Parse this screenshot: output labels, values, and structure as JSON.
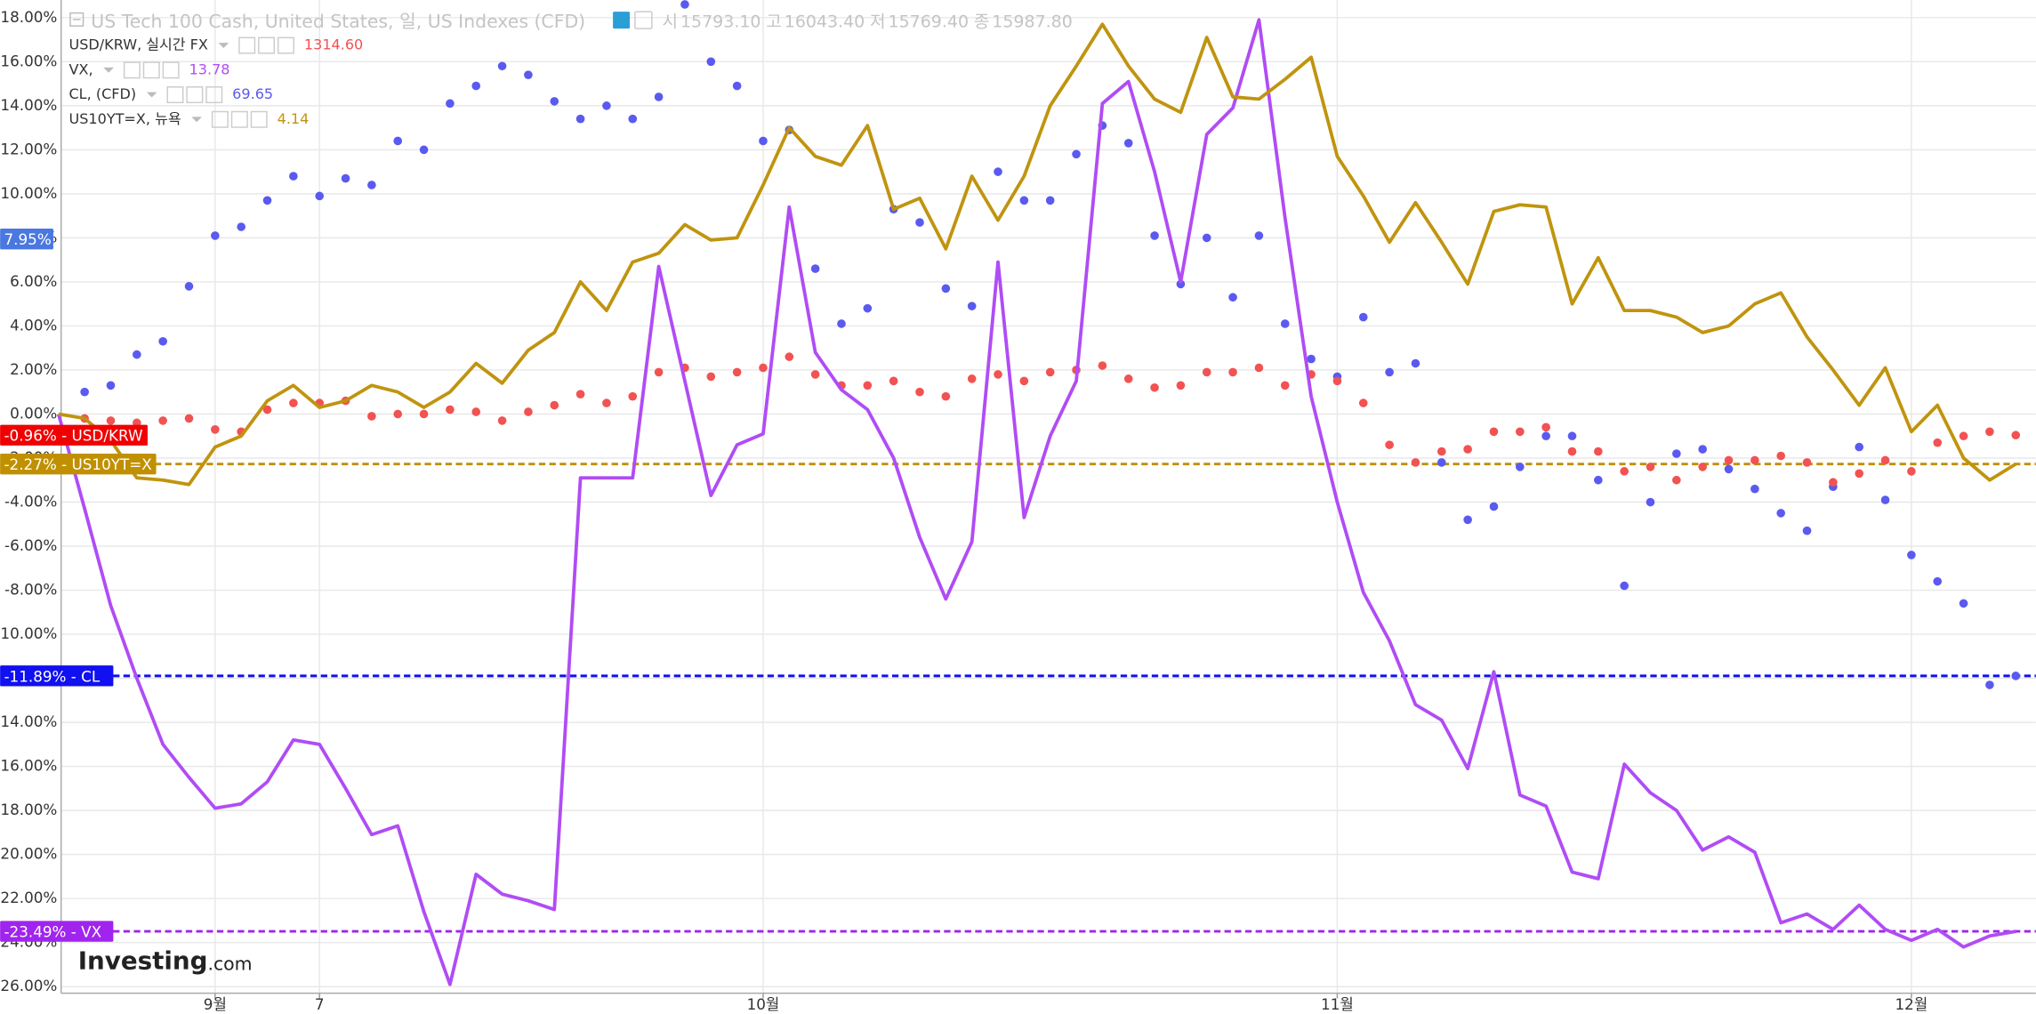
{
  "chart_data": {
    "type": "line",
    "title": "US Tech 100 Cash, United States, 일, US Indexes (CFD)",
    "ohlc": [
      {
        "name": "시",
        "price": {
          "value": 15793.1,
          "label": "15793.10"
        }
      },
      {
        "name": "고",
        "price": {
          "value": 16043.4,
          "label": "16043.40"
        }
      },
      {
        "name": "저",
        "price": {
          "value": 15769.4,
          "label": "15769.40"
        }
      },
      {
        "name": "종",
        "price": {
          "value": 15987.8,
          "label": "15987.80"
        }
      }
    ],
    "categories": [
      null,
      null,
      null,
      null,
      null,
      null,
      "9월",
      null,
      null,
      null,
      "7",
      null,
      null,
      null,
      null,
      null,
      null,
      null,
      null,
      null,
      null,
      null,
      null,
      null,
      null,
      null,
      null,
      "10월",
      null,
      null,
      null,
      null,
      null,
      null,
      null,
      null,
      null,
      null,
      null,
      null,
      null,
      null,
      null,
      null,
      null,
      null,
      null,
      null,
      null,
      "11월",
      null,
      null,
      null,
      null,
      null,
      null,
      null,
      null,
      null,
      null,
      null,
      null,
      null,
      null,
      null,
      null,
      null,
      null,
      null,
      null,
      null,
      "12월",
      null,
      null,
      null,
      null
    ],
    "ylim": [
      -26.3,
      18.8
    ],
    "yticks": [
      {
        "value": 18,
        "label": "18.00%"
      },
      {
        "value": 16,
        "label": "16.00%"
      },
      {
        "value": 14,
        "label": "14.00%"
      },
      {
        "value": 12,
        "label": "12.00%"
      },
      {
        "value": 10,
        "label": "10.00%"
      },
      {
        "value": 8,
        "label": "8.00%"
      },
      {
        "value": 6,
        "label": "6.00%"
      },
      {
        "value": 4,
        "label": "4.00%"
      },
      {
        "value": 2,
        "label": "2.00%"
      },
      {
        "value": 0,
        "label": "0.00%"
      },
      {
        "value": -2,
        "label": "-2.00%"
      },
      {
        "value": -4,
        "label": "-4.00%"
      },
      {
        "value": -6,
        "label": "-6.00%"
      },
      {
        "value": -8,
        "label": "-8.00%"
      },
      {
        "value": -10,
        "label": "-10.00%"
      },
      {
        "value": -12,
        "label": "-12.00%"
      },
      {
        "value": -14,
        "label": "-14.00%"
      },
      {
        "value": -16,
        "label": "-16.00%"
      },
      {
        "value": -18,
        "label": "-18.00%"
      },
      {
        "value": -20,
        "label": "-20.00%"
      },
      {
        "value": -22,
        "label": "-22.00%"
      },
      {
        "value": -24,
        "label": "-24.00%"
      },
      {
        "value": -26,
        "label": "-26.00%"
      }
    ],
    "grid": true,
    "series": [
      {
        "name": "VX,",
        "style": "line",
        "color": "#b04cf5",
        "badge_color": "#a024ee",
        "dashed": true,
        "last_price": {
          "value": 13.78,
          "label": "13.78"
        },
        "badge": {
          "value": -23.49,
          "label": "-23.49% - VX"
        },
        "values": [
          0,
          -4.3,
          -8.7,
          -12,
          -15,
          -16.5,
          -17.9,
          -17.7,
          -16.7,
          -14.8,
          -15,
          -17,
          -19.1,
          -18.7,
          -22.6,
          -25.9,
          -20.9,
          -21.8,
          -22.1,
          -22.5,
          -2.9,
          -2.9,
          -2.9,
          6.7,
          1.5,
          -3.7,
          -1.4,
          -0.9,
          9.4,
          2.8,
          1.1,
          0.2,
          -2,
          -5.6,
          -8.4,
          -5.8,
          6.9,
          -4.7,
          -1,
          1.5,
          14.1,
          15.1,
          11,
          6,
          12.7,
          13.9,
          17.9,
          8.9,
          0.8,
          -4,
          -8.1,
          -10.3,
          -13.2,
          -13.9,
          -16.1,
          -11.7,
          -17.3,
          -17.8,
          -20.8,
          -21.1,
          -15.9,
          -17.2,
          -18,
          -19.8,
          -19.2,
          -19.9,
          -23.1,
          -22.7,
          -23.4,
          -22.3,
          -23.4,
          -23.9,
          -23.4,
          -24.2,
          -23.7,
          -23.49
        ]
      },
      {
        "name": "US10YT=X, 뉴욕",
        "style": "line",
        "color": "#c0940f",
        "badge_color": "#c09000",
        "dashed": true,
        "last_price": {
          "value": 4.14,
          "label": "4.14"
        },
        "badge": {
          "value": -2.27,
          "label": "-2.27% - US10YT=X"
        },
        "values": [
          0,
          -0.2,
          -1.2,
          -2.9,
          -3,
          -3.2,
          -1.5,
          -1,
          0.6,
          1.3,
          0.3,
          0.6,
          1.3,
          1,
          0.3,
          1,
          2.3,
          1.4,
          2.9,
          3.7,
          6,
          4.7,
          6.9,
          7.3,
          8.6,
          7.9,
          8,
          10.4,
          13,
          11.7,
          11.3,
          13.1,
          9.3,
          9.8,
          7.5,
          10.8,
          8.8,
          10.8,
          14,
          15.8,
          17.7,
          15.8,
          14.3,
          13.7,
          17.1,
          14.4,
          14.3,
          15.2,
          16.2,
          11.7,
          9.9,
          7.8,
          9.6,
          7.8,
          5.9,
          9.2,
          9.5,
          9.4,
          5,
          7.1,
          4.7,
          4.7,
          4.4,
          3.7,
          4,
          5,
          5.5,
          3.5,
          2,
          0.4,
          2.1,
          -0.8,
          0.4,
          -2,
          -3,
          -2.27
        ]
      },
      {
        "name": "CL, (CFD)",
        "style": "dots",
        "color": "#5a5af0",
        "badge_color": "#1010f0",
        "dashed": true,
        "last_price": {
          "value": 69.65,
          "label": "69.65"
        },
        "badge": {
          "value": -11.89,
          "label": "-11.89% - CL"
        },
        "values": [
          null,
          1,
          1.3,
          2.7,
          3.3,
          5.8,
          8.1,
          8.5,
          9.7,
          10.8,
          9.9,
          10.7,
          10.4,
          12.4,
          12,
          14.1,
          14.9,
          15.8,
          15.4,
          14.2,
          13.4,
          14,
          13.4,
          14.4,
          18.6,
          16,
          14.9,
          12.4,
          12.9,
          6.6,
          4.1,
          4.8,
          9.3,
          8.7,
          5.7,
          4.9,
          11,
          9.7,
          9.7,
          11.8,
          13.1,
          12.3,
          8.1,
          5.9,
          8,
          5.3,
          8.1,
          4.1,
          2.5,
          1.7,
          4.4,
          1.9,
          2.3,
          -2.2,
          -4.8,
          -4.2,
          -2.4,
          -1,
          -1,
          -3,
          -7.8,
          -4,
          -1.8,
          -1.6,
          -2.5,
          -3.4,
          -4.5,
          -5.3,
          -3.3,
          -1.5,
          -3.9,
          -6.4,
          -7.6,
          -8.6,
          -12.3,
          -11.89
        ]
      },
      {
        "name": "USD/KRW, 실시간 FX",
        "style": "dots",
        "color": "#f25252",
        "badge_color": "#f00000",
        "dashed": false,
        "last_price": {
          "value": 1314.6,
          "label": "1314.60"
        },
        "badge": {
          "value": -0.96,
          "label": "-0.96% - USD/KRW"
        },
        "values": [
          null,
          -0.2,
          -0.3,
          -0.4,
          -0.3,
          -0.2,
          -0.7,
          -0.8,
          0.2,
          0.5,
          0.5,
          0.6,
          -0.1,
          0,
          0,
          0.2,
          0.1,
          -0.3,
          0.1,
          0.4,
          0.9,
          0.5,
          0.8,
          1.9,
          2.1,
          1.7,
          1.9,
          2.1,
          2.6,
          1.8,
          1.3,
          1.3,
          1.5,
          1,
          0.8,
          1.6,
          1.8,
          1.5,
          1.9,
          2,
          2.2,
          1.6,
          1.2,
          1.3,
          1.9,
          1.9,
          2.1,
          1.3,
          1.8,
          1.5,
          0.5,
          -1.4,
          -2.2,
          -1.7,
          -1.6,
          -0.8,
          -0.8,
          -0.6,
          -1.7,
          -1.7,
          -2.6,
          -2.4,
          -3,
          -2.4,
          -2.1,
          -2.1,
          -1.9,
          -2.2,
          -3.1,
          -2.7,
          -2.1,
          -2.6,
          -1.3,
          -1,
          -0.8,
          -0.96
        ]
      }
    ],
    "legend_order": [
      3,
      0,
      2,
      1
    ],
    "markers": [
      {
        "value": 7.95,
        "label": "7.95%",
        "color": "#4a78e0"
      }
    ],
    "watermark": [
      "Investing",
      ".com"
    ]
  }
}
